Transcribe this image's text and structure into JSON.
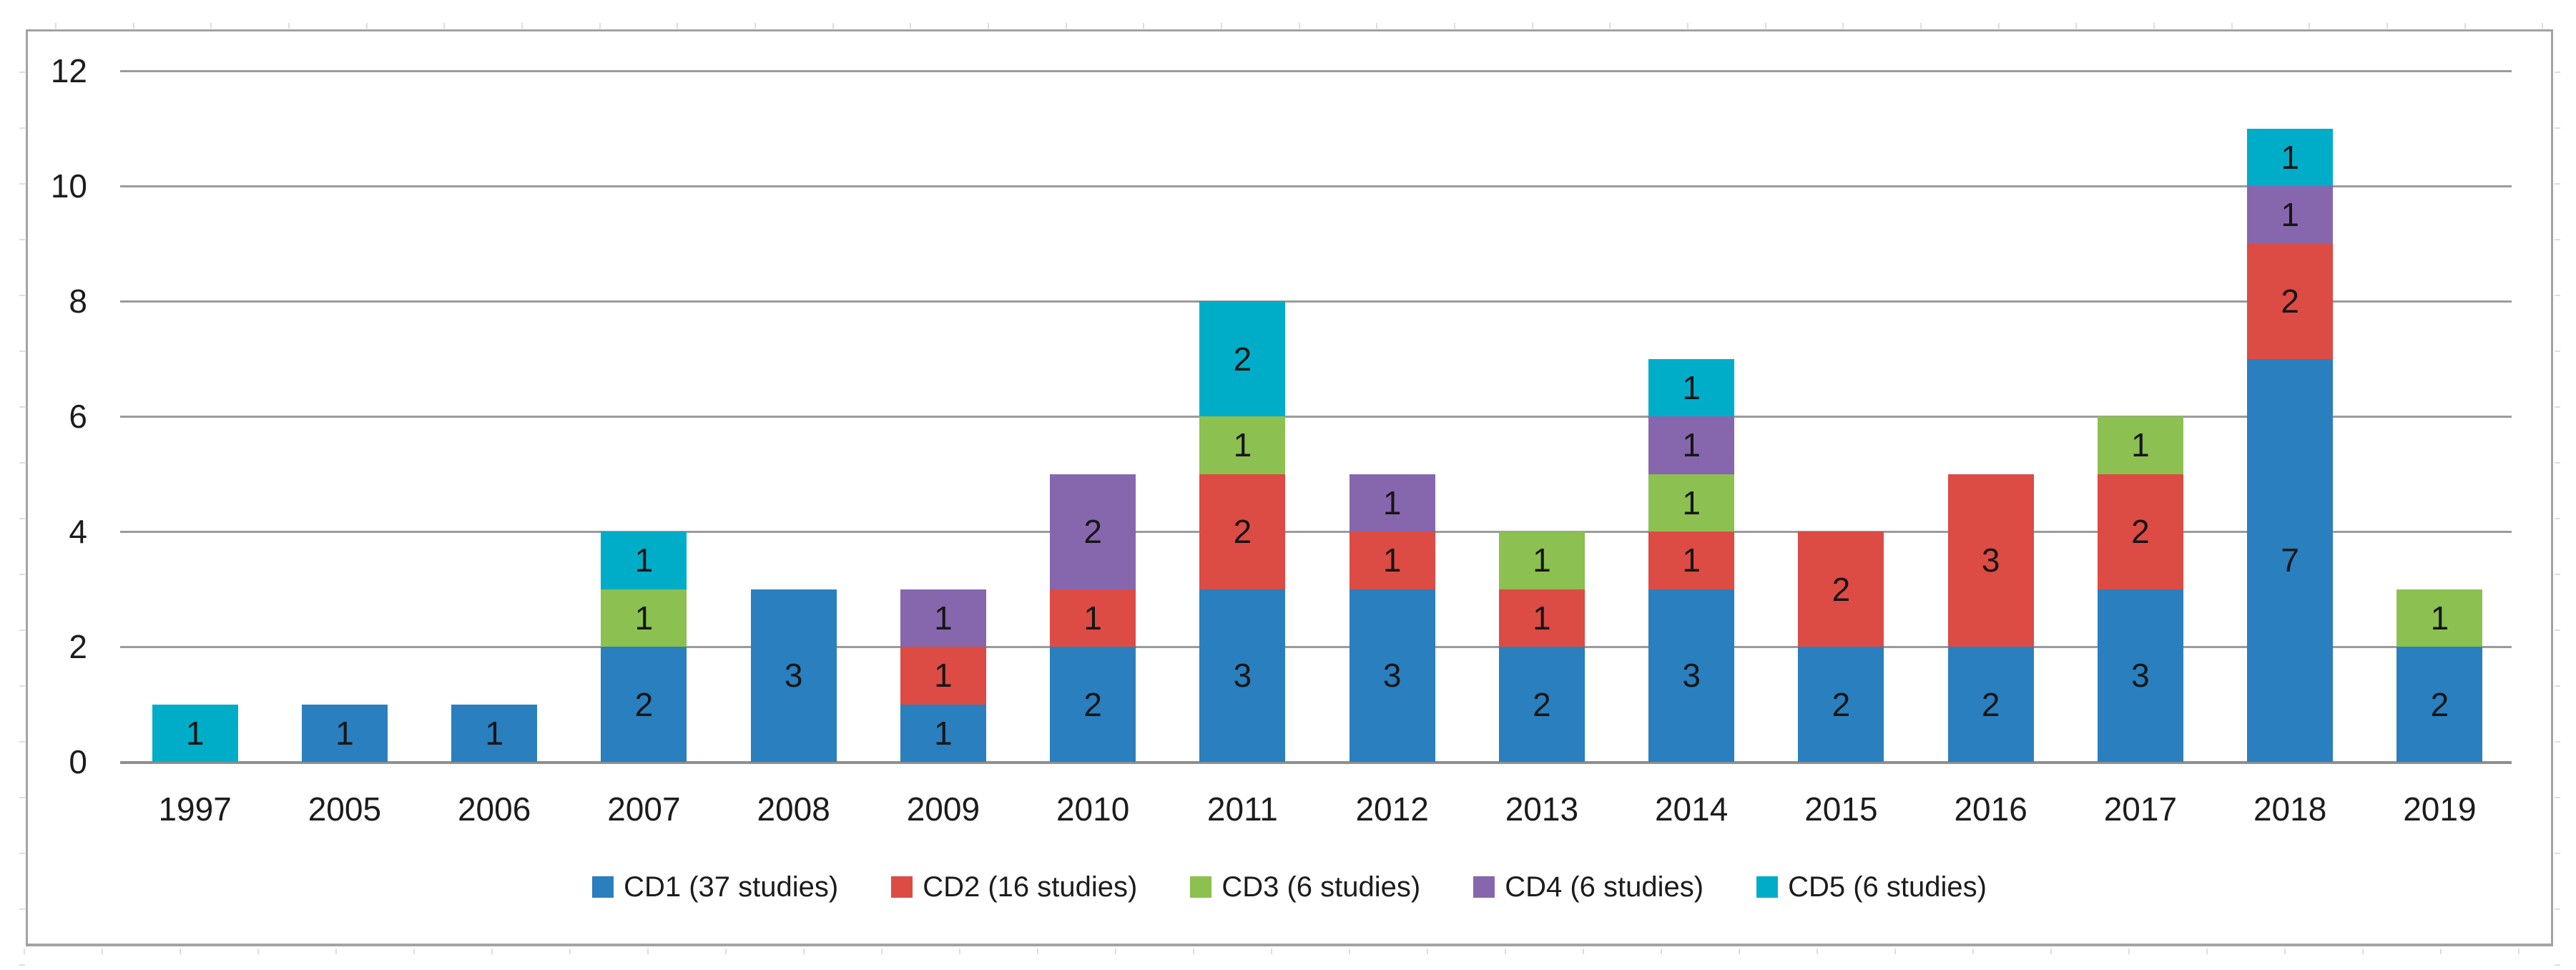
{
  "chart_data": {
    "type": "bar",
    "stacked": true,
    "title": "",
    "xlabel": "",
    "ylabel": "",
    "categories": [
      "1997",
      "2005",
      "2006",
      "2007",
      "2008",
      "2009",
      "2010",
      "2011",
      "2012",
      "2013",
      "2014",
      "2015",
      "2016",
      "2017",
      "2018",
      "2019"
    ],
    "series": [
      {
        "name": "CD1 (37 studies)",
        "key": "cd1",
        "color": "#2A7FBE",
        "values": [
          0,
          1,
          1,
          2,
          3,
          1,
          2,
          3,
          3,
          2,
          3,
          2,
          2,
          3,
          7,
          2
        ]
      },
      {
        "name": "CD2 (16 studies)",
        "key": "cd2",
        "color": "#DC4B44",
        "values": [
          0,
          0,
          0,
          0,
          0,
          1,
          1,
          2,
          1,
          1,
          1,
          2,
          3,
          2,
          2,
          0
        ]
      },
      {
        "name": "CD3 (6 studies)",
        "key": "cd3",
        "color": "#8CC050",
        "values": [
          0,
          0,
          0,
          1,
          0,
          0,
          0,
          1,
          0,
          1,
          1,
          0,
          0,
          1,
          0,
          1
        ]
      },
      {
        "name": "CD4 (6 studies)",
        "key": "cd4",
        "color": "#8667AD",
        "values": [
          0,
          0,
          0,
          0,
          0,
          1,
          2,
          0,
          1,
          0,
          1,
          0,
          0,
          0,
          1,
          0
        ]
      },
      {
        "name": "CD5 (6 studies)",
        "key": "cd5",
        "color": "#00ADC8",
        "values": [
          1,
          0,
          0,
          1,
          0,
          0,
          0,
          2,
          0,
          0,
          1,
          0,
          0,
          0,
          1,
          0
        ]
      }
    ],
    "y_ticks": [
      0,
      2,
      4,
      6,
      8,
      10,
      12
    ],
    "ylim": [
      0,
      12
    ],
    "grid": true,
    "segment_labels_visible": true,
    "legend_position": "bottom",
    "frame_border_color": "#a3a3a3",
    "gridline_color": "#9b9b9b",
    "label_color": "#1c1c1c"
  }
}
